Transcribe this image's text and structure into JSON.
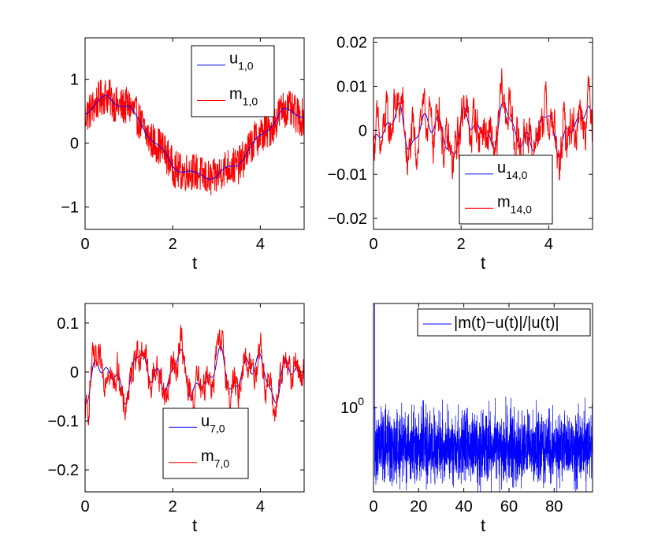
{
  "colors": {
    "blue": "#0000ff",
    "red": "#ff0000",
    "axis": "#000000"
  },
  "chart_data": [
    {
      "type": "line",
      "xlabel": "t",
      "xlim": [
        0,
        5
      ],
      "ylim": [
        -1.35,
        1.65
      ],
      "xticks": [
        "0",
        "2",
        "4"
      ],
      "xtick_values": [
        0,
        2,
        4
      ],
      "yticks": [
        "−1",
        "0",
        "1"
      ],
      "ytick_values": [
        -1,
        0,
        1
      ],
      "legend_position": "top-right",
      "series": [
        {
          "name": "u",
          "sub": "1,0",
          "color": "#0000ff",
          "kind": "smooth",
          "x": [
            0,
            0.5,
            1.0,
            1.5,
            2.0,
            2.5,
            3.0,
            3.5,
            4.0,
            4.5,
            5.0
          ],
          "values": [
            0.5,
            0.72,
            0.55,
            0.1,
            -0.35,
            -0.5,
            -0.52,
            -0.3,
            0.1,
            0.5,
            0.45
          ]
        },
        {
          "name": "m",
          "sub": "1,0",
          "color": "#ff0000",
          "kind": "noisy",
          "x": [
            0,
            0.5,
            1.0,
            1.5,
            2.0,
            2.5,
            3.0,
            3.5,
            4.0,
            4.5,
            5.0
          ],
          "values": [
            0.5,
            0.72,
            0.55,
            0.1,
            -0.35,
            -0.5,
            -0.52,
            -0.3,
            0.1,
            0.5,
            0.45
          ],
          "noise_amplitude": 0.3
        }
      ]
    },
    {
      "type": "line",
      "xlabel": "t",
      "xlim": [
        0,
        5
      ],
      "ylim": [
        -0.0225,
        0.021
      ],
      "xticks": [
        "0",
        "2",
        "4"
      ],
      "xtick_values": [
        0,
        2,
        4
      ],
      "yticks": [
        "−0.02",
        "−0.01",
        "0",
        "0.01",
        "0.02"
      ],
      "ytick_values": [
        -0.02,
        -0.01,
        0,
        0.01,
        0.02
      ],
      "legend_position": "bottom-right",
      "series": [
        {
          "name": "u",
          "sub": "14,0",
          "color": "#0000ff",
          "kind": "wave",
          "amplitude": 0.006,
          "center": 0.0
        },
        {
          "name": "m",
          "sub": "14,0",
          "color": "#ff0000",
          "kind": "noisy-wave",
          "amplitude": 0.009,
          "center": 0.0
        }
      ]
    },
    {
      "type": "line",
      "xlabel": "t",
      "xlim": [
        0,
        5
      ],
      "ylim": [
        -0.245,
        0.14
      ],
      "xticks": [
        "0",
        "2",
        "4"
      ],
      "xtick_values": [
        0,
        2,
        4
      ],
      "yticks": [
        "−0.2",
        "−0.1",
        "0",
        "0.1"
      ],
      "ytick_values": [
        -0.2,
        -0.1,
        0,
        0.1
      ],
      "legend_position": "bottom-right",
      "series": [
        {
          "name": "u",
          "sub": "7,0",
          "color": "#0000ff",
          "kind": "wave",
          "amplitude": 0.055,
          "center": -0.005
        },
        {
          "name": "m",
          "sub": "7,0",
          "color": "#ff0000",
          "kind": "noisy-wave",
          "amplitude": 0.06,
          "center": -0.005
        }
      ]
    },
    {
      "type": "line",
      "xlabel": "t",
      "xlim": [
        0,
        97
      ],
      "yscale": "log",
      "xticks": [
        "0",
        "20",
        "40",
        "60",
        "80"
      ],
      "xtick_values": [
        0,
        20,
        40,
        60,
        80
      ],
      "ytick_label_base": "10",
      "ytick_label_exp": "0",
      "legend_position": "top-right",
      "series": [
        {
          "name": "|m(t)−u(t)|/|u(t)|",
          "color": "#0000ff",
          "kind": "error",
          "typical_value": 0.55,
          "spread_low": 0.3,
          "spread_high": 1.1,
          "initial_spike": 12
        }
      ]
    }
  ]
}
